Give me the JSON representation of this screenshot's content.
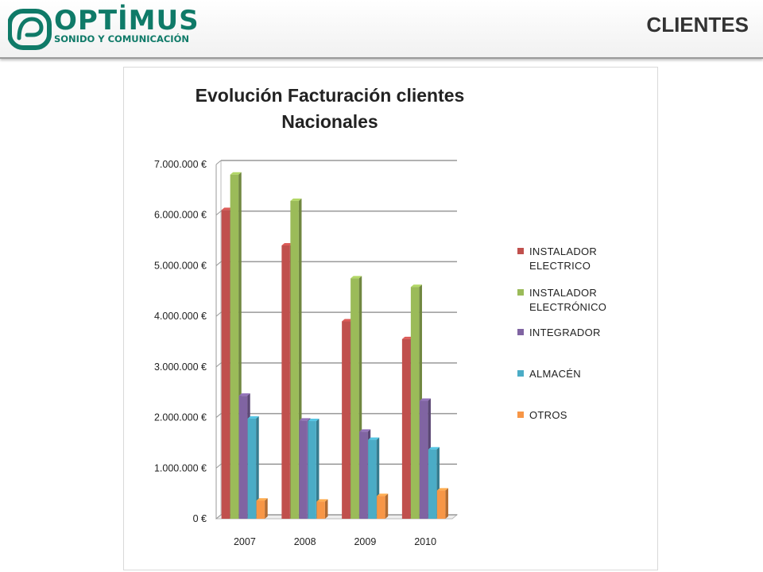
{
  "header": {
    "brand_name": "OPTİMUS",
    "brand_tagline": "SONIDO Y COMUNICACIÓN",
    "page_title": "CLIENTES",
    "brand_color": "#0f7a68"
  },
  "chart_data": {
    "type": "bar",
    "title_line1": "Evolución  Facturación clientes",
    "title_line2": "Nacionales",
    "categories": [
      "2007",
      "2008",
      "2009",
      "2010"
    ],
    "y_ticks": [
      "0 €",
      "1.000.000 €",
      "2.000.000 €",
      "3.000.000 €",
      "4.000.000 €",
      "5.000.000 €",
      "6.000.000 €",
      "7.000.000 €"
    ],
    "ylim": [
      0,
      7000000
    ],
    "grid": true,
    "legend_position": "right",
    "series": [
      {
        "name": "INSTALADOR ELECTRICO",
        "color": "#c0504d",
        "values": [
          6100000,
          5400000,
          3900000,
          3550000
        ]
      },
      {
        "name": "INSTALADOR ELECTRÓNICO",
        "color": "#9bbb59",
        "values": [
          6800000,
          6280000,
          4750000,
          4580000
        ]
      },
      {
        "name": "INTEGRADOR",
        "color": "#8064a2",
        "values": [
          2430000,
          1940000,
          1720000,
          2330000
        ]
      },
      {
        "name": "ALMACÉN",
        "color": "#4bacc6",
        "values": [
          1980000,
          1930000,
          1560000,
          1370000
        ]
      },
      {
        "name": "OTROS",
        "color": "#f79646",
        "values": [
          360000,
          340000,
          450000,
          560000
        ]
      }
    ]
  }
}
